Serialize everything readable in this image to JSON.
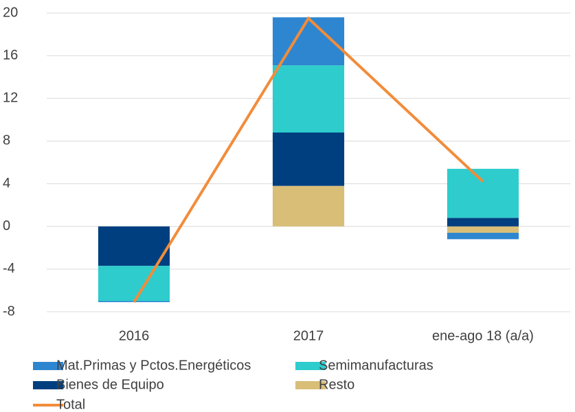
{
  "chart_data": {
    "type": "bar",
    "categories": [
      "2016",
      "2017",
      "ene-ago 18 (a/a)"
    ],
    "series": [
      {
        "name": "Mat.Primas y Pctos.Energéticos",
        "color": "#2e86d0",
        "values": [
          -0.1,
          4.5,
          -0.6
        ]
      },
      {
        "name": "Semimanufacturas",
        "color": "#2ecccc",
        "values": [
          -3.3,
          6.3,
          4.6
        ]
      },
      {
        "name": "Bienes de Equipo",
        "color": "#003f7f",
        "values": [
          -3.7,
          5.0,
          0.8
        ]
      },
      {
        "name": "Resto",
        "color": "#d9be78",
        "values": [
          0,
          3.8,
          -0.6
        ]
      },
      {
        "name": "Total",
        "color": "#f28c3a",
        "type": "line",
        "values": [
          -7.1,
          19.5,
          4.2
        ]
      }
    ],
    "ylim": [
      -8,
      20
    ],
    "yticks": [
      -8,
      -4,
      0,
      4,
      8,
      12,
      16,
      20
    ],
    "grid": true
  }
}
